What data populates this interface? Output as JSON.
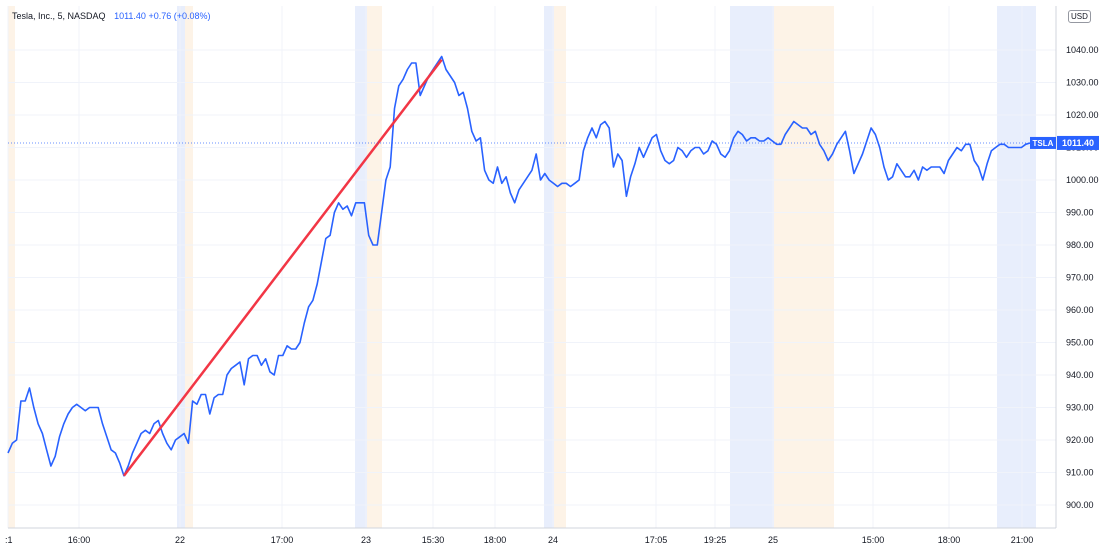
{
  "header": {
    "symbol": "Tesla, Inc., 5, NASDAQ",
    "price": "1011.40",
    "change": "+0.76 (+0.08%)",
    "currency": "USD"
  },
  "colors": {
    "line": "#2962ff",
    "trendline": "#f23645",
    "premarket_shade": "#e8eefc",
    "postmarket_shade": "#fdf3e7",
    "grid": "#f0f3fa",
    "last_price": "#2962ff"
  },
  "chart_data": {
    "type": "line",
    "title": "",
    "xlabel": "",
    "ylabel": "",
    "ylim": [
      890,
      1050
    ],
    "y_ticks": [
      "900.00",
      "910.00",
      "920.00",
      "930.00",
      "940.00",
      "950.00",
      "960.00",
      "970.00",
      "980.00",
      "990.00",
      "1000.00",
      "1010.00",
      "1020.00",
      "1030.00",
      "1040.00"
    ],
    "x_ticks": [
      ":1",
      "16:00",
      "22",
      "17:00",
      "23",
      "15:30",
      "18:00",
      "24",
      "17:05",
      "19:25",
      "25",
      "15:00",
      "18:00",
      "21:00"
    ],
    "series": [
      {
        "name": "TSLA",
        "values": [
          916,
          919,
          920,
          932,
          932,
          936,
          930,
          925,
          922,
          917,
          912,
          915,
          921,
          925,
          928,
          930,
          931,
          930,
          929,
          930,
          930,
          930,
          925,
          921,
          917,
          916,
          913,
          909,
          912,
          916,
          919,
          922,
          923,
          922,
          925,
          926,
          922,
          919,
          917,
          920,
          921,
          922,
          919,
          932,
          931,
          934,
          934,
          928,
          933,
          934,
          934,
          940,
          942,
          943,
          944,
          937,
          945,
          946,
          946,
          943,
          945,
          941,
          940,
          946,
          946,
          949,
          948,
          948,
          950,
          956,
          961,
          963,
          968,
          975,
          982,
          983,
          990,
          993,
          991,
          992,
          989,
          993,
          993,
          993,
          983,
          980,
          980,
          990,
          1000,
          1004,
          1022,
          1029,
          1031,
          1034,
          1036,
          1036,
          1026,
          1029,
          1032,
          1034,
          1036,
          1038,
          1034,
          1032,
          1030,
          1026,
          1027,
          1022,
          1015,
          1012,
          1013,
          1003,
          1000,
          999,
          1004,
          999,
          1001,
          996,
          993,
          997,
          999,
          1001,
          1003,
          1008,
          1000,
          1002,
          1000,
          999,
          998,
          999,
          999,
          998,
          999,
          1000,
          1009,
          1013,
          1016,
          1013,
          1017,
          1018,
          1016,
          1004,
          1008,
          1006,
          995,
          1001,
          1005,
          1010,
          1007,
          1010,
          1013,
          1014,
          1009,
          1006,
          1005,
          1006,
          1010,
          1009,
          1007,
          1009,
          1010,
          1010,
          1008,
          1009,
          1012,
          1011,
          1008,
          1007,
          1009,
          1013,
          1015,
          1014,
          1012,
          1013,
          1013,
          1012,
          1012,
          1013,
          1012,
          1011,
          1011,
          1014,
          1016,
          1018,
          1017,
          1016,
          1016,
          1014,
          1015,
          1011,
          1009,
          1006,
          1008,
          1011,
          1013,
          1015,
          1009,
          1002,
          1005,
          1008,
          1012,
          1016,
          1014,
          1010,
          1004,
          1000,
          1001,
          1005,
          1003,
          1001,
          1001,
          1003,
          1000,
          1004,
          1003,
          1004,
          1004,
          1004,
          1002,
          1006,
          1008,
          1010,
          1009,
          1011,
          1011,
          1006,
          1004,
          1000,
          1005,
          1009,
          1010,
          1011,
          1011,
          1010,
          1010,
          1010,
          1010,
          1011,
          1011.4
        ]
      }
    ],
    "trendline": {
      "from": 909,
      "to": 1037
    },
    "last_price": 1011.4,
    "last_price_label": "TSLA",
    "last_price_value": "1011.40",
    "grid": true,
    "shaded_sessions": [
      "pre-market (blue)",
      "post-market (orange)"
    ]
  }
}
